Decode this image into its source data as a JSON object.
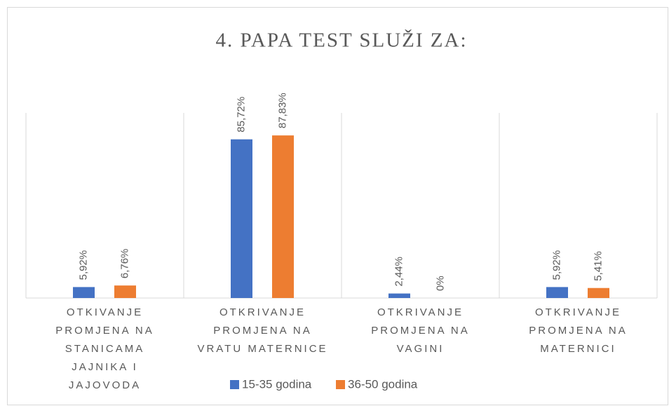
{
  "chart_data": {
    "type": "bar",
    "title": "4. PAPA TEST SLUŽI ZA:",
    "categories": [
      "OTKIVANJE PROMJENA NA STANICAMA JAJNIKA I JAJOVODA",
      "OTKRIVANJE PROMJENA NA VRATU MATERNICE",
      "OTKRIVANJE PROMJENA NA VAGINI",
      "OTKRIVANJE PROMJENA NA MATERNICI"
    ],
    "series": [
      {
        "name": "15-35 godina",
        "color": "#4472c4",
        "values": [
          5.92,
          85.72,
          2.44,
          5.92
        ],
        "value_labels": [
          "5,92%",
          "85,72%",
          "2,44%",
          "5,92%"
        ]
      },
      {
        "name": "36-50 godina",
        "color": "#ed7d31",
        "values": [
          6.76,
          87.83,
          0,
          5.41
        ],
        "value_labels": [
          "6,76%",
          "87,83%",
          "0%",
          "5,41%"
        ]
      }
    ],
    "ylim": [
      0,
      100
    ],
    "legend": "bottom"
  }
}
